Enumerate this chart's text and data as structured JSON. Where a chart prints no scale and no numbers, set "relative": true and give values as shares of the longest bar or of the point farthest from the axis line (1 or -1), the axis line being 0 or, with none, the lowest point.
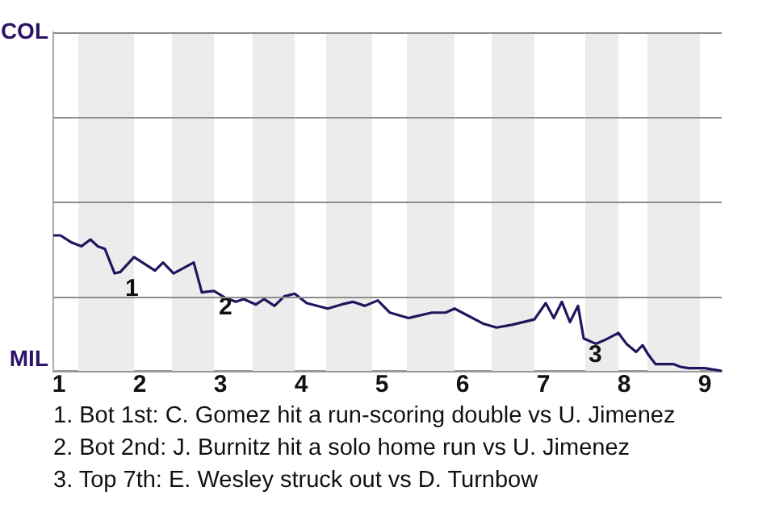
{
  "chart_data": {
    "type": "line",
    "relative": true,
    "x": [
      0.93,
      1.02,
      1.15,
      1.28,
      1.39,
      1.48,
      1.57,
      1.69,
      1.76,
      1.93,
      2.19,
      2.29,
      2.42,
      2.67,
      2.77,
      2.92,
      3.06,
      3.19,
      3.29,
      3.44,
      3.54,
      3.67,
      3.79,
      3.92,
      4.07,
      4.33,
      4.5,
      4.64,
      4.79,
      4.95,
      5.1,
      5.33,
      5.62,
      5.79,
      5.9,
      6.25,
      6.42,
      6.61,
      6.89,
      7.03,
      7.13,
      7.23,
      7.33,
      7.43,
      7.5,
      7.65,
      7.77,
      7.93,
      8.03,
      8.15,
      8.23,
      8.3,
      8.39,
      8.61,
      8.7,
      8.8,
      9.0,
      9.21
    ],
    "series": [
      {
        "color": "#22155e",
        "values": [
          1,
          1,
          0.95,
          0.92,
          0.97,
          0.92,
          0.9,
          0.72,
          0.73,
          0.84,
          0.74,
          0.8,
          0.72,
          0.8,
          0.58,
          0.59,
          0.54,
          0.51,
          0.53,
          0.49,
          0.53,
          0.48,
          0.55,
          0.57,
          0.5,
          0.46,
          0.49,
          0.51,
          0.48,
          0.52,
          0.43,
          0.39,
          0.43,
          0.43,
          0.46,
          0.35,
          0.32,
          0.34,
          0.38,
          0.5,
          0.39,
          0.51,
          0.36,
          0.48,
          0.24,
          0.2,
          0.23,
          0.28,
          0.2,
          0.14,
          0.19,
          0.12,
          0.05,
          0.05,
          0.03,
          0.02,
          0.02,
          0
        ]
      }
    ],
    "xlim": [
      0.93,
      9.21
    ],
    "xticks": [
      1,
      2,
      3,
      4,
      5,
      6,
      7,
      8,
      9
    ],
    "ref_lines": [
      {
        "axis": "y",
        "value": 0.55,
        "color": "#8c8c8c"
      }
    ],
    "marker": "none",
    "line_style": "solid",
    "bands": [
      {
        "axis": "x",
        "from": 1.24,
        "to": 1.93,
        "color": "#ececec"
      },
      {
        "axis": "x",
        "from": 2.4,
        "to": 2.92,
        "color": "#ececec"
      },
      {
        "axis": "x",
        "from": 3.4,
        "to": 3.92,
        "color": "#ececec"
      },
      {
        "axis": "x",
        "from": 4.31,
        "to": 4.88,
        "color": "#ececec"
      },
      {
        "axis": "x",
        "from": 5.31,
        "to": 5.9,
        "color": "#ececec"
      },
      {
        "axis": "x",
        "from": 6.36,
        "to": 6.89,
        "color": "#ececec"
      },
      {
        "axis": "x",
        "from": 7.52,
        "to": 7.93,
        "color": "#ececec"
      },
      {
        "axis": "x",
        "from": 8.29,
        "to": 8.94,
        "color": "#ececec"
      }
    ],
    "annotations": [
      "COL",
      "MIL",
      {
        "text": "1",
        "x": 1.76,
        "y": 0.73
      },
      {
        "text": "2",
        "x": 2.92,
        "y": 0.59
      },
      {
        "text": "3",
        "x": 7.5,
        "y": 0.24
      },
      "1. Bot 1st: C. Gomez hit a run-scoring double vs U. Jimenez",
      "2. Bot 2nd: J. Burnitz hit a solo home run vs U. Jimenez",
      "3. Top 7th: E. Wesley struck out vs D. Turnbow"
    ]
  }
}
